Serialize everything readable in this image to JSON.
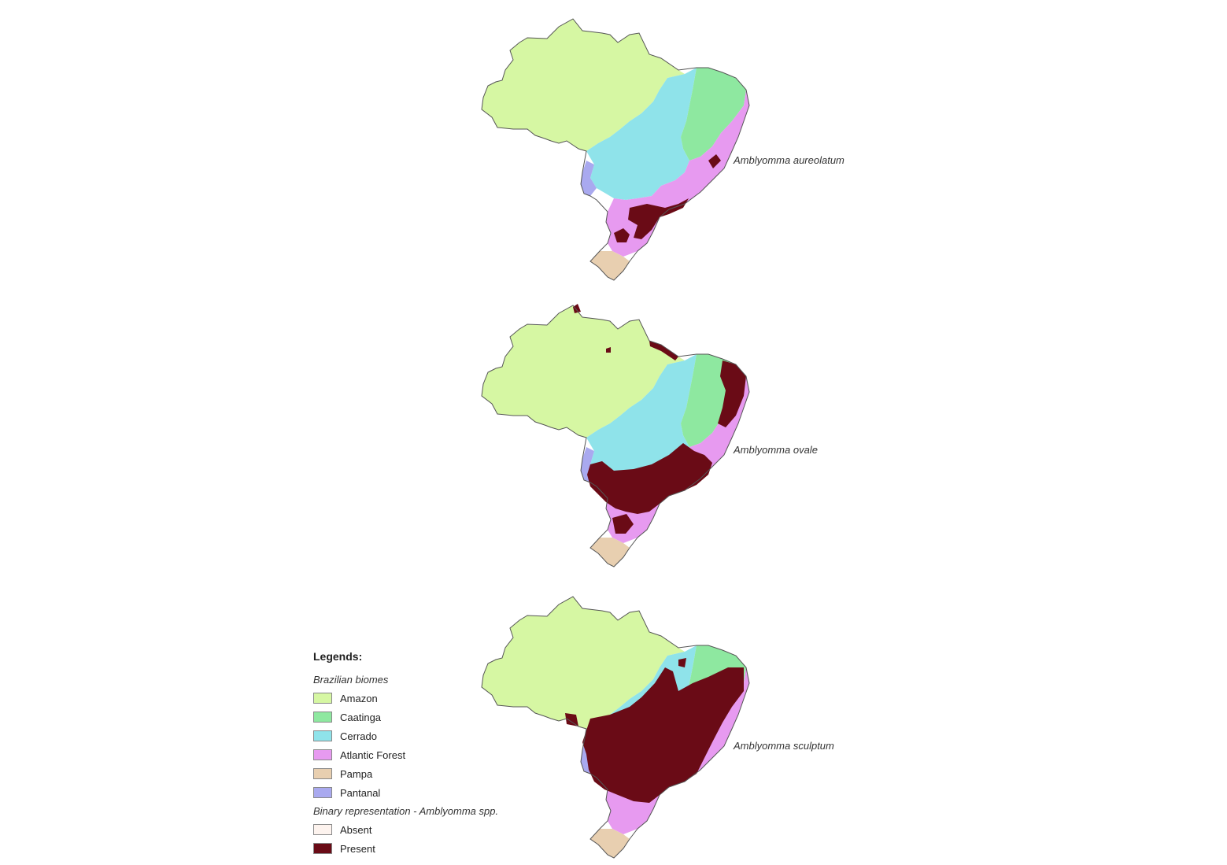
{
  "maps": [
    {
      "species_label": "Amblyomma aureolatum"
    },
    {
      "species_label": "Amblyomma ovale"
    },
    {
      "species_label": "Amblyomma sculptum"
    }
  ],
  "legend": {
    "title": "Legends:",
    "biomes_heading": "Brazilian biomes",
    "biomes": [
      {
        "label": "Amazon",
        "color": "#d6f7a3"
      },
      {
        "label": "Caatinga",
        "color": "#8ee8a0"
      },
      {
        "label": "Cerrado",
        "color": "#8fe3ea"
      },
      {
        "label": "Atlantic Forest",
        "color": "#e79af0"
      },
      {
        "label": "Pampa",
        "color": "#e8cfb0"
      },
      {
        "label": "Pantanal",
        "color": "#a9a9ef"
      }
    ],
    "binary_heading": "Binary representation - Amblyomma spp.",
    "binary": [
      {
        "label": "Absent",
        "color": "#fdf3ee"
      },
      {
        "label": "Present",
        "color": "#6a0b16"
      }
    ]
  }
}
